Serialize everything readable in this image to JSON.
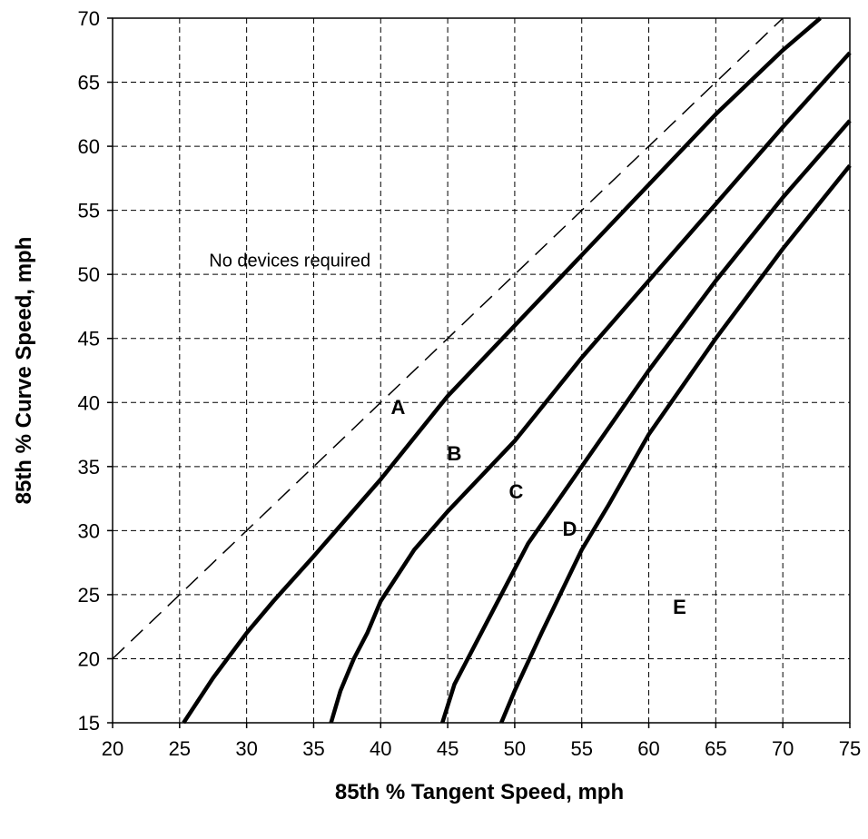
{
  "chart_data": {
    "type": "line",
    "xlabel": "85th % Tangent Speed, mph",
    "ylabel": "85th % Curve Speed, mph",
    "xlim": [
      20,
      75
    ],
    "ylim": [
      15,
      70
    ],
    "x_ticks": [
      20,
      25,
      30,
      35,
      40,
      45,
      50,
      55,
      60,
      65,
      70,
      75
    ],
    "y_ticks": [
      15,
      20,
      25,
      30,
      35,
      40,
      45,
      50,
      55,
      60,
      65,
      70
    ],
    "grid": true,
    "grid_style": "dashed",
    "series": [
      {
        "style": "dashed",
        "x": [
          20,
          70
        ],
        "y": [
          20,
          70
        ]
      },
      {
        "style": "solid",
        "x": [
          25.3,
          27.5,
          30,
          32,
          35,
          40,
          45,
          50,
          55,
          60,
          65,
          70,
          72.8
        ],
        "y": [
          15,
          18.5,
          22,
          24.5,
          28,
          34,
          40.5,
          46,
          51.5,
          57,
          62.5,
          67.5,
          70
        ]
      },
      {
        "style": "solid",
        "x": [
          36.3,
          37,
          38,
          39,
          40,
          42.5,
          45,
          50,
          55,
          60,
          65,
          70,
          75
        ],
        "y": [
          15,
          17.5,
          20,
          22,
          24.5,
          28.5,
          31.5,
          37,
          43.5,
          49.5,
          55.5,
          61.5,
          67.3
        ]
      },
      {
        "style": "solid",
        "x": [
          44.6,
          45.5,
          47,
          49,
          51,
          55,
          60,
          65,
          70,
          75
        ],
        "y": [
          15,
          18,
          21,
          25,
          29,
          35,
          42.5,
          49.5,
          56,
          62
        ]
      },
      {
        "style": "solid",
        "x": [
          49,
          50,
          52,
          55,
          57,
          60,
          65,
          70,
          75
        ],
        "y": [
          15,
          17.5,
          22,
          28.5,
          32,
          37.5,
          45,
          52,
          58.5
        ]
      }
    ],
    "annotations": [
      {
        "text": "No devices required",
        "x": 27.2,
        "y": 50.6,
        "kind": "note"
      },
      {
        "text": "A",
        "x": 41.3,
        "y": 39.1,
        "kind": "region"
      },
      {
        "text": "B",
        "x": 45.5,
        "y": 35.5,
        "kind": "region"
      },
      {
        "text": "C",
        "x": 50.1,
        "y": 32.5,
        "kind": "region"
      },
      {
        "text": "D",
        "x": 54.1,
        "y": 29.6,
        "kind": "region"
      },
      {
        "text": "E",
        "x": 62.3,
        "y": 23.5,
        "kind": "region"
      }
    ]
  }
}
